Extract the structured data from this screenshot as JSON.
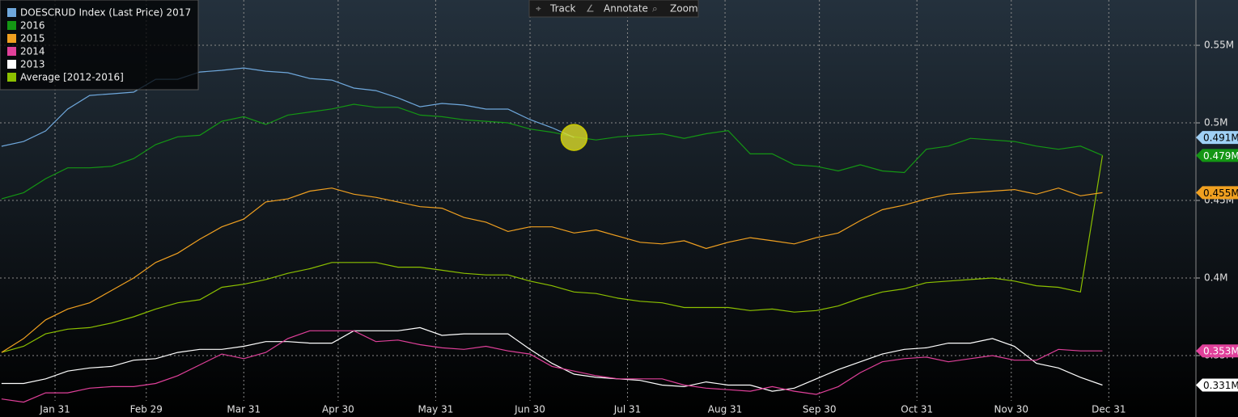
{
  "chart_data": {
    "type": "line",
    "toolbar": [
      "Track",
      "Annotate",
      "Zoom"
    ],
    "x": [
      14,
      21,
      28,
      35,
      42,
      49,
      56,
      63,
      70,
      77,
      84,
      91,
      98,
      105,
      112,
      119,
      126,
      133,
      140,
      147,
      154,
      161,
      168,
      175,
      182,
      189,
      196,
      203,
      210,
      217,
      224,
      231,
      238,
      245,
      252,
      259,
      266,
      273,
      280,
      287,
      294,
      301,
      308,
      315,
      322,
      329,
      336,
      343,
      350,
      357,
      364
    ],
    "xlim": [
      13.5,
      393.7
    ],
    "ylim": [
      0.3104,
      0.5792
    ],
    "xticks": [
      {
        "value": 31,
        "label": "Jan 31"
      },
      {
        "value": 60,
        "label": "Feb 29"
      },
      {
        "value": 91,
        "label": "Mar 31"
      },
      {
        "value": 121,
        "label": "Apr 30"
      },
      {
        "value": 152,
        "label": "May 31"
      },
      {
        "value": 182,
        "label": "Jun 30"
      },
      {
        "value": 213,
        "label": "Jul 31"
      },
      {
        "value": 244,
        "label": "Aug 31"
      },
      {
        "value": 274,
        "label": "Sep 30"
      },
      {
        "value": 305,
        "label": "Oct 31"
      },
      {
        "value": 335,
        "label": "Nov 30"
      },
      {
        "value": 366,
        "label": "Dec 31"
      }
    ],
    "yticks": [
      {
        "value": 0.35,
        "label": "0.35M"
      },
      {
        "value": 0.4,
        "label": "0.4M"
      },
      {
        "value": 0.45,
        "label": "0.45M"
      },
      {
        "value": 0.5,
        "label": "0.5M"
      },
      {
        "value": 0.55,
        "label": "0.55M"
      }
    ],
    "grid": true,
    "series": [
      {
        "name": "DOESCRUD Index (Last Price) 2017",
        "color": "#6fa8dc",
        "end_label": "0.491M",
        "values": [
          0.4849,
          0.488,
          0.4948,
          0.5089,
          0.5177,
          0.5187,
          0.5198,
          0.5281,
          0.5281,
          0.5328,
          0.5339,
          0.5354,
          0.5333,
          0.5323,
          0.5286,
          0.5276,
          0.5224,
          0.5208,
          0.5161,
          0.5104,
          0.5125,
          0.5115,
          0.5089,
          0.5089,
          0.5021,
          0.4969,
          0.4906,
          null,
          null,
          null,
          null,
          null,
          null,
          null,
          null,
          null,
          null,
          null,
          null,
          null,
          null,
          null,
          null,
          null,
          null,
          null,
          null,
          null,
          null,
          null,
          null
        ]
      },
      {
        "name": "2016",
        "color": "#149614",
        "end_label": "0.479M",
        "values": [
          0.451,
          0.455,
          0.464,
          0.471,
          0.471,
          0.472,
          0.477,
          0.486,
          0.491,
          0.492,
          0.501,
          0.504,
          0.499,
          0.505,
          0.507,
          0.509,
          0.512,
          0.51,
          0.51,
          0.505,
          0.504,
          0.502,
          0.501,
          0.5,
          0.496,
          0.494,
          0.491,
          0.489,
          0.491,
          0.492,
          0.493,
          0.49,
          0.493,
          0.495,
          0.48,
          0.48,
          0.473,
          0.472,
          0.469,
          0.473,
          0.469,
          0.468,
          0.483,
          0.485,
          0.49,
          0.489,
          0.488,
          0.485,
          0.483,
          0.485,
          0.479
        ]
      },
      {
        "name": "2015",
        "color": "#f0a020",
        "end_label": "0.455M",
        "values": [
          0.352,
          0.361,
          0.373,
          0.38,
          0.384,
          0.392,
          0.4,
          0.41,
          0.416,
          0.425,
          0.433,
          0.438,
          0.449,
          0.451,
          0.456,
          0.458,
          0.454,
          0.452,
          0.449,
          0.446,
          0.445,
          0.439,
          0.436,
          0.43,
          0.433,
          0.433,
          0.429,
          0.431,
          0.427,
          0.423,
          0.422,
          0.424,
          0.419,
          0.423,
          0.426,
          0.424,
          0.422,
          0.426,
          0.429,
          0.437,
          0.444,
          0.447,
          0.451,
          0.454,
          0.455,
          0.456,
          0.457,
          0.454,
          0.458,
          0.453,
          0.455
        ]
      },
      {
        "name": "2014",
        "color": "#e0409a",
        "end_label": "0.353M",
        "values": [
          0.322,
          0.32,
          0.326,
          0.326,
          0.329,
          0.33,
          0.33,
          0.332,
          0.337,
          0.344,
          0.351,
          0.348,
          0.352,
          0.361,
          0.366,
          0.366,
          0.366,
          0.359,
          0.36,
          0.357,
          0.355,
          0.354,
          0.356,
          0.353,
          0.351,
          0.343,
          0.34,
          0.337,
          0.335,
          0.335,
          0.335,
          0.331,
          0.329,
          0.328,
          0.327,
          0.33,
          0.327,
          0.325,
          0.33,
          0.339,
          0.346,
          0.348,
          0.349,
          0.346,
          0.348,
          0.35,
          0.347,
          0.347,
          0.354,
          0.353,
          0.353
        ]
      },
      {
        "name": "2013",
        "color": "#ffffff",
        "end_label": "0.331M",
        "values": [
          0.332,
          0.332,
          0.335,
          0.34,
          0.342,
          0.343,
          0.347,
          0.348,
          0.352,
          0.354,
          0.354,
          0.356,
          0.359,
          0.359,
          0.358,
          0.358,
          0.366,
          0.366,
          0.366,
          0.368,
          0.363,
          0.364,
          0.364,
          0.364,
          0.354,
          0.345,
          0.338,
          0.336,
          0.335,
          0.334,
          0.331,
          0.33,
          0.333,
          0.331,
          0.331,
          0.327,
          0.329,
          0.335,
          0.341,
          0.346,
          0.351,
          0.354,
          0.355,
          0.358,
          0.358,
          0.361,
          0.356,
          0.345,
          0.342,
          0.336,
          0.331
        ]
      },
      {
        "name": "Average [2012-2016]",
        "color": "#8cc000",
        "values": [
          0.352,
          0.356,
          0.364,
          0.367,
          0.368,
          0.371,
          0.375,
          0.38,
          0.384,
          0.386,
          0.394,
          0.396,
          0.399,
          0.403,
          0.406,
          0.41,
          0.41,
          0.41,
          0.407,
          0.407,
          0.405,
          0.403,
          0.402,
          0.402,
          0.398,
          0.395,
          0.391,
          0.39,
          0.387,
          0.385,
          0.384,
          0.381,
          0.381,
          0.381,
          0.379,
          0.38,
          0.378,
          0.379,
          0.382,
          0.387,
          0.391,
          0.393,
          0.397,
          0.398,
          0.399,
          0.4,
          0.398,
          0.395,
          0.394,
          0.391,
          0.479
        ]
      }
    ]
  }
}
